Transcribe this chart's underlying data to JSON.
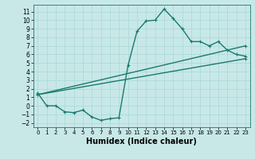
{
  "xlabel": "Humidex (Indice chaleur)",
  "bg_color": "#c8e8e8",
  "line_color": "#1a7a6e",
  "grid_color": "#a8d8d8",
  "xlim": [
    -0.5,
    23.5
  ],
  "ylim": [
    -2.5,
    11.8
  ],
  "xticks": [
    0,
    1,
    2,
    3,
    4,
    5,
    6,
    7,
    8,
    9,
    10,
    11,
    12,
    13,
    14,
    15,
    16,
    17,
    18,
    19,
    20,
    21,
    22,
    23
  ],
  "yticks": [
    -2,
    -1,
    0,
    1,
    2,
    3,
    4,
    5,
    6,
    7,
    8,
    9,
    10,
    11
  ],
  "line1_x": [
    0,
    1,
    2,
    3,
    4,
    5,
    6,
    7,
    8,
    9,
    10,
    11,
    12,
    13,
    14,
    15,
    16,
    17,
    18,
    19,
    20,
    21,
    22,
    23
  ],
  "line1_y": [
    1.5,
    0.0,
    0.0,
    -0.7,
    -0.8,
    -0.5,
    -1.3,
    -1.7,
    -1.5,
    -1.4,
    4.7,
    8.7,
    9.9,
    10.0,
    11.3,
    10.2,
    9.0,
    7.5,
    7.5,
    7.0,
    7.5,
    6.5,
    6.0,
    5.8
  ],
  "line2_x": [
    0,
    23
  ],
  "line2_y": [
    1.3,
    5.5
  ],
  "line3_x": [
    0,
    23
  ],
  "line3_y": [
    1.3,
    7.0
  ],
  "marker": "+",
  "marker_size": 3,
  "line_width": 1.0,
  "xlabel_fontsize": 7,
  "tick_fontsize": 5.5
}
